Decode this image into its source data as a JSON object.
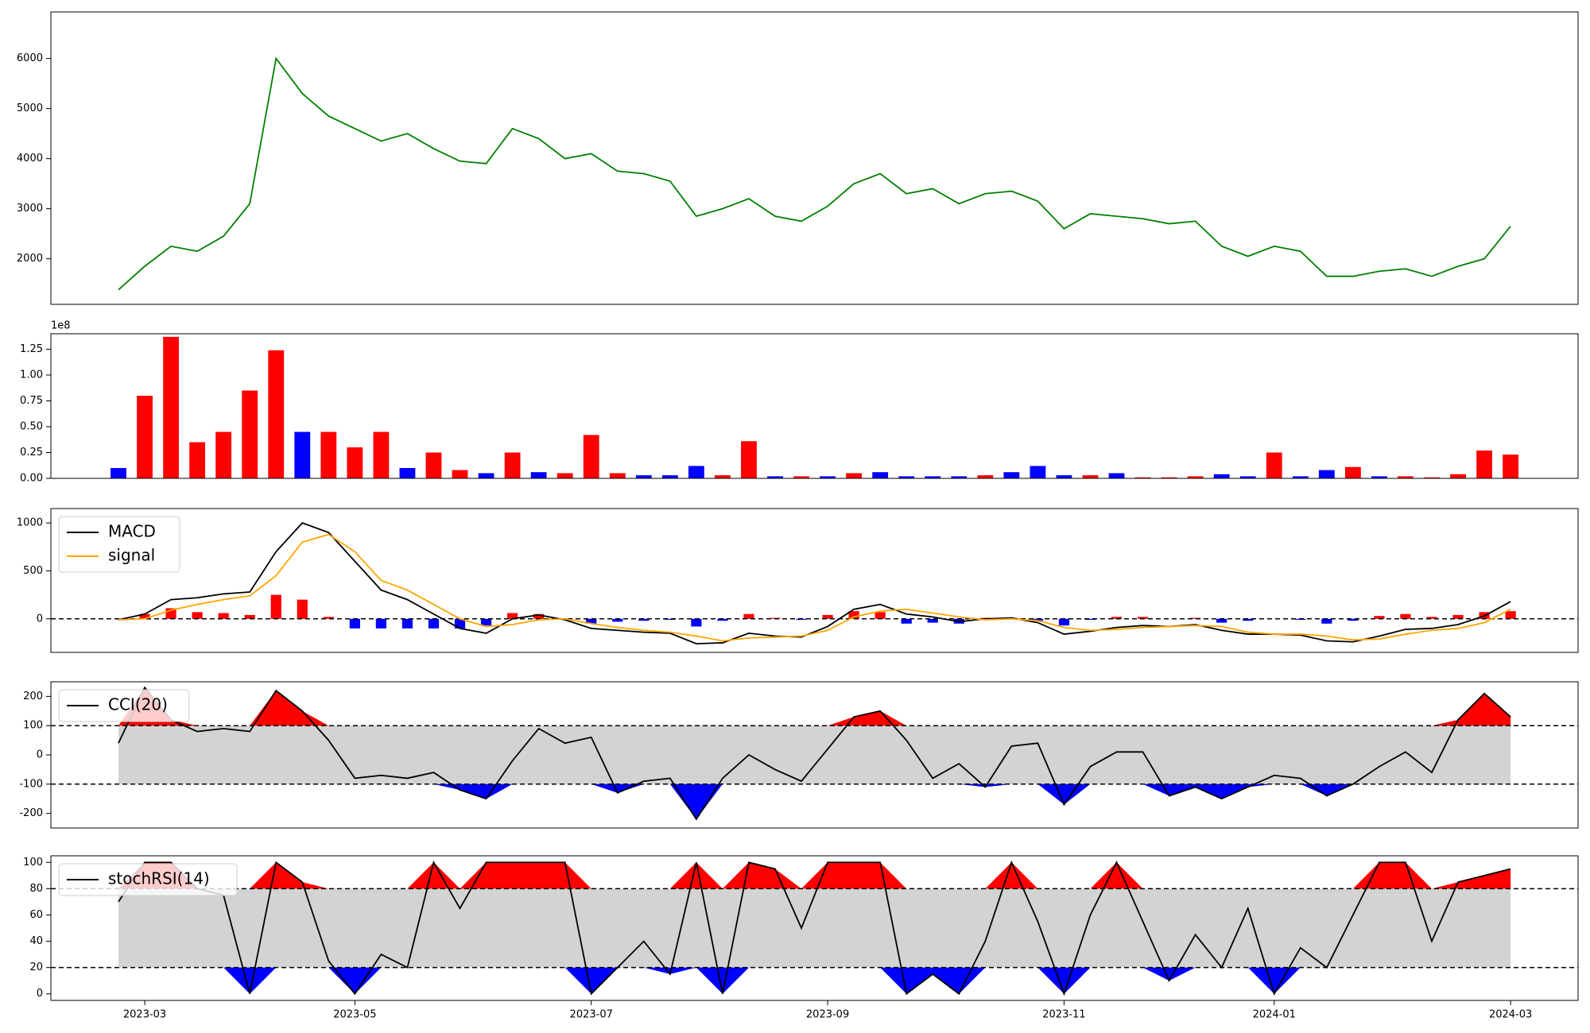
{
  "chart_data": [
    {
      "type": "line",
      "color": "#008000",
      "values": [
        1380,
        1850,
        2250,
        2150,
        2450,
        3100,
        6000,
        5300,
        4850,
        4600,
        4350,
        4500,
        4200,
        3950,
        3900,
        4600,
        4400,
        4000,
        4100,
        3750,
        3700,
        3550,
        2850,
        3000,
        3200,
        2850,
        2750,
        3050,
        3500,
        3700,
        3300,
        3400,
        3100,
        3300,
        3350,
        3150,
        2600,
        2900,
        2850,
        2800,
        2700,
        2750,
        2250,
        2050,
        2250,
        2150,
        1650,
        1650,
        1750,
        1800,
        1650,
        1850,
        2000,
        2650
      ],
      "ylim": [
        1090,
        6930
      ],
      "yticks": [
        2000,
        3000,
        4000,
        5000,
        6000
      ]
    },
    {
      "type": "bar",
      "offset_label": "1e8",
      "values": [
        0.1,
        0.8,
        1.37,
        0.35,
        0.45,
        0.85,
        1.24,
        0.45,
        0.45,
        0.3,
        0.45,
        0.1,
        0.25,
        0.08,
        0.05,
        0.25,
        0.06,
        0.05,
        0.42,
        0.05,
        0.03,
        0.03,
        0.12,
        0.03,
        0.36,
        0.02,
        0.02,
        0.02,
        0.05,
        0.06,
        0.02,
        0.02,
        0.02,
        0.03,
        0.06,
        0.12,
        0.03,
        0.03,
        0.05,
        0.01,
        0.01,
        0.02,
        0.04,
        0.02,
        0.25,
        0.02,
        0.08,
        0.11,
        0.02,
        0.02,
        0.01,
        0.04,
        0.27,
        0.23
      ],
      "colors": [
        "#0000ff",
        "#ff0000",
        "#ff0000",
        "#ff0000",
        "#ff0000",
        "#ff0000",
        "#ff0000",
        "#0000ff",
        "#ff0000",
        "#ff0000",
        "#ff0000",
        "#0000ff",
        "#ff0000",
        "#ff0000",
        "#0000ff",
        "#ff0000",
        "#0000ff",
        "#ff0000",
        "#ff0000",
        "#ff0000",
        "#0000ff",
        "#0000ff",
        "#0000ff",
        "#ff0000",
        "#ff0000",
        "#0000ff",
        "#ff0000",
        "#0000ff",
        "#ff0000",
        "#0000ff",
        "#0000ff",
        "#0000ff",
        "#0000ff",
        "#ff0000",
        "#0000ff",
        "#0000ff",
        "#0000ff",
        "#ff0000",
        "#0000ff",
        "#ff0000",
        "#ff0000",
        "#ff0000",
        "#0000ff",
        "#0000ff",
        "#ff0000",
        "#0000ff",
        "#0000ff",
        "#ff0000",
        "#0000ff",
        "#ff0000",
        "#ff0000",
        "#ff0000",
        "#ff0000",
        "#ff0000"
      ],
      "ylim": [
        0,
        1.4
      ],
      "yticks": [
        {
          "value": 0,
          "label": "0.00"
        },
        {
          "value": 0.25,
          "label": "0.25"
        },
        {
          "value": 0.5,
          "label": "0.50"
        },
        {
          "value": 0.75,
          "label": "0.75"
        },
        {
          "value": 1,
          "label": "1.00"
        },
        {
          "value": 1.25,
          "label": "1.25"
        }
      ]
    },
    {
      "type": "combo",
      "legend": "upper left",
      "zero_line": true,
      "series": [
        {
          "name": "MACD",
          "color": "#000000",
          "values": [
            -10,
            50,
            200,
            220,
            260,
            280,
            700,
            1000,
            900,
            600,
            300,
            200,
            50,
            -100,
            -150,
            0,
            40,
            -10,
            -100,
            -120,
            -140,
            -150,
            -260,
            -250,
            -150,
            -180,
            -190,
            -80,
            100,
            150,
            50,
            20,
            -30,
            0,
            10,
            -40,
            -160,
            -130,
            -90,
            -70,
            -80,
            -60,
            -120,
            -160,
            -160,
            -170,
            -230,
            -240,
            -180,
            -110,
            -100,
            -60,
            30,
            180
          ]
        },
        {
          "name": "signal",
          "color": "#ffa500",
          "values": [
            -10,
            0,
            90,
            150,
            200,
            240,
            450,
            800,
            880,
            700,
            400,
            300,
            150,
            0,
            -80,
            -60,
            -10,
            0,
            -50,
            -90,
            -120,
            -140,
            -180,
            -230,
            -200,
            -190,
            -180,
            -120,
            20,
            80,
            100,
            60,
            20,
            -10,
            0,
            -20,
            -90,
            -120,
            -110,
            -90,
            -80,
            -70,
            -80,
            -140,
            -160,
            -160,
            -180,
            -220,
            -210,
            -160,
            -120,
            -100,
            -40,
            100
          ]
        }
      ],
      "histogram": {
        "positive_color": "#ff0000",
        "negative_color": "#0000ff",
        "values": [
          0,
          50,
          110,
          70,
          60,
          40,
          250,
          200,
          20,
          -100,
          -100,
          -100,
          -100,
          -100,
          -70,
          60,
          50,
          -10,
          -50,
          -30,
          -20,
          -10,
          -80,
          -20,
          50,
          10,
          -10,
          40,
          80,
          70,
          -50,
          -40,
          -50,
          10,
          10,
          -20,
          -70,
          -10,
          20,
          20,
          0,
          10,
          -40,
          -20,
          0,
          -10,
          -50,
          -20,
          30,
          50,
          20,
          40,
          70,
          80
        ]
      },
      "ylim": [
        -350,
        1150
      ],
      "yticks": [
        0,
        500,
        1000
      ]
    },
    {
      "type": "band",
      "legend": "upper left",
      "thresholds": [
        100,
        -100
      ],
      "fill_colors": {
        "above": "#ff0000",
        "between": "#d3d3d3",
        "below": "#0000ff"
      },
      "series": [
        {
          "name": "CCI(20)",
          "color": "#000000",
          "values": [
            40,
            230,
            120,
            80,
            90,
            80,
            220,
            150,
            50,
            -80,
            -70,
            -80,
            -60,
            -120,
            -150,
            -20,
            90,
            40,
            60,
            -130,
            -90,
            -80,
            -220,
            -80,
            0,
            -50,
            -90,
            20,
            130,
            150,
            50,
            -80,
            -30,
            -110,
            30,
            40,
            -170,
            -40,
            10,
            10,
            -140,
            -110,
            -150,
            -110,
            -70,
            -80,
            -140,
            -100,
            -40,
            10,
            -60,
            120,
            210,
            130
          ]
        }
      ],
      "ylim": [
        -250,
        250
      ],
      "yticks": [
        -200,
        -100,
        0,
        100,
        200
      ]
    },
    {
      "type": "band",
      "legend": "upper left",
      "thresholds": [
        80,
        20
      ],
      "fill_colors": {
        "above": "#ff0000",
        "between": "#d3d3d3",
        "below": "#0000ff"
      },
      "series": [
        {
          "name": "stochRSI(14)",
          "color": "#000000",
          "values": [
            70,
            100,
            100,
            80,
            75,
            0,
            100,
            85,
            25,
            0,
            30,
            20,
            100,
            65,
            100,
            100,
            100,
            100,
            0,
            20,
            40,
            15,
            100,
            0,
            100,
            95,
            50,
            100,
            100,
            100,
            0,
            15,
            0,
            40,
            100,
            55,
            0,
            60,
            100,
            55,
            10,
            45,
            20,
            65,
            0,
            35,
            20,
            60,
            100,
            100,
            40,
            85,
            90,
            95
          ]
        }
      ],
      "ylim": [
        -5,
        105
      ],
      "yticks": [
        0,
        20,
        40,
        60,
        80,
        100
      ],
      "categories": [
        null,
        "2023-03",
        null,
        null,
        null,
        null,
        null,
        null,
        null,
        "2023-05",
        null,
        null,
        null,
        null,
        null,
        null,
        null,
        null,
        "2023-07",
        null,
        null,
        null,
        null,
        null,
        null,
        null,
        null,
        "2023-09",
        null,
        null,
        null,
        null,
        null,
        null,
        null,
        null,
        "2023-11",
        null,
        null,
        null,
        null,
        null,
        null,
        null,
        "2024-01",
        null,
        null,
        null,
        null,
        null,
        null,
        null,
        null,
        "2024-03"
      ]
    }
  ]
}
